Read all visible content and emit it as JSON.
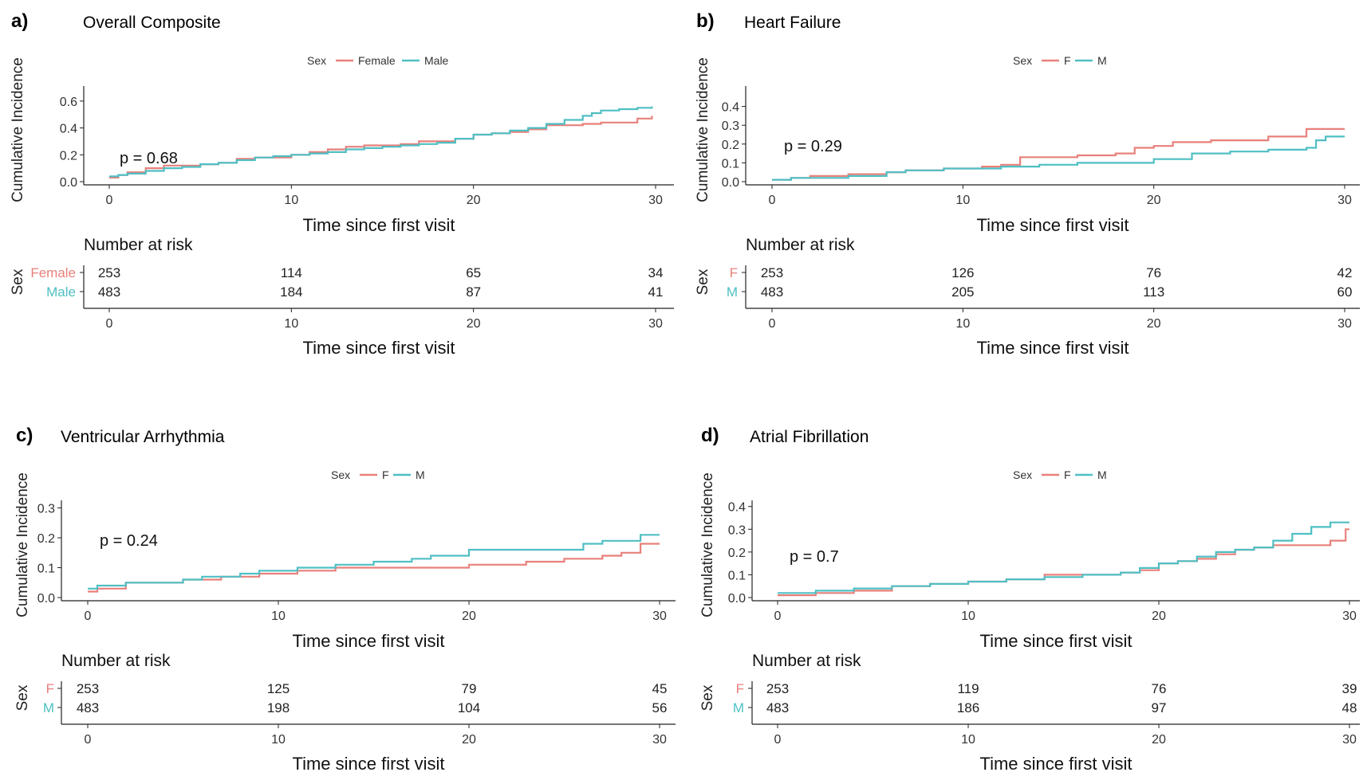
{
  "chart_data": [
    {
      "type": "line",
      "panel_label": "a)",
      "title": "Overall Composite",
      "legend": {
        "title": "Sex",
        "placement": "top-center",
        "labels": [
          "Female",
          "Male"
        ]
      },
      "xlabel": "Time since first visit",
      "ylabel": "Cumulative Incidence",
      "xlim": [
        0,
        30
      ],
      "ylim": [
        0,
        0.7
      ],
      "xticks": [
        0,
        10,
        20,
        30
      ],
      "yticks": [
        0.0,
        0.2,
        0.4,
        0.6
      ],
      "annotation": "p = 0.68",
      "colors": {
        "female": "#e8807b",
        "male": "#4fbfc3"
      },
      "series": [
        {
          "name": "Female",
          "x": [
            0,
            0.5,
            1,
            2,
            3,
            4,
            5,
            6,
            7,
            8,
            9,
            10,
            11,
            12,
            13,
            14,
            15,
            16,
            17,
            18,
            19,
            20,
            21,
            22,
            23,
            24,
            25,
            26,
            27,
            28,
            29,
            29.8
          ],
          "y": [
            0.03,
            0.05,
            0.07,
            0.1,
            0.12,
            0.12,
            0.13,
            0.14,
            0.17,
            0.18,
            0.18,
            0.2,
            0.22,
            0.24,
            0.26,
            0.27,
            0.27,
            0.28,
            0.3,
            0.3,
            0.32,
            0.35,
            0.36,
            0.37,
            0.39,
            0.42,
            0.42,
            0.43,
            0.44,
            0.44,
            0.47,
            0.49
          ]
        },
        {
          "name": "Male",
          "x": [
            0,
            0.5,
            1,
            2,
            3,
            4,
            5,
            6,
            7,
            8,
            9,
            10,
            11,
            12,
            13,
            14,
            15,
            16,
            17,
            18,
            19,
            20,
            21,
            22,
            23,
            24,
            25,
            26,
            26.5,
            27,
            28,
            29,
            29.8
          ],
          "y": [
            0.04,
            0.05,
            0.06,
            0.08,
            0.1,
            0.11,
            0.13,
            0.14,
            0.16,
            0.18,
            0.19,
            0.2,
            0.21,
            0.22,
            0.24,
            0.25,
            0.26,
            0.27,
            0.28,
            0.29,
            0.32,
            0.35,
            0.36,
            0.38,
            0.4,
            0.43,
            0.46,
            0.49,
            0.51,
            0.53,
            0.54,
            0.55,
            0.56
          ]
        }
      ],
      "risk_table": {
        "title": "Number at risk",
        "row_header": "Sex",
        "time_points": [
          0,
          10,
          20,
          30
        ],
        "xlabel": "Time since first visit",
        "rows": [
          {
            "label": "Female",
            "values": [
              "253",
              "114",
              "65",
              "34"
            ]
          },
          {
            "label": "Male",
            "values": [
              "483",
              "184",
              "87",
              "41"
            ]
          }
        ]
      }
    },
    {
      "type": "line",
      "panel_label": "b)",
      "title": "Heart Failure",
      "legend": {
        "title": "Sex",
        "placement": "top-center",
        "labels": [
          "F",
          "M"
        ]
      },
      "xlabel": "Time since first visit",
      "ylabel": "Cumulative Incidence",
      "xlim": [
        0,
        30
      ],
      "ylim": [
        0,
        0.5
      ],
      "xticks": [
        0,
        10,
        20,
        30
      ],
      "yticks": [
        0.0,
        0.1,
        0.2,
        0.3,
        0.4
      ],
      "annotation": "p = 0.29",
      "colors": {
        "female": "#e8807b",
        "male": "#4fbfc3"
      },
      "series": [
        {
          "name": "F",
          "x": [
            0,
            1,
            2,
            4,
            6,
            7,
            9,
            10,
            11,
            12,
            13,
            14,
            16,
            18,
            19,
            20,
            21,
            23,
            25,
            26,
            27,
            28,
            29,
            30
          ],
          "y": [
            0.01,
            0.02,
            0.03,
            0.04,
            0.05,
            0.06,
            0.07,
            0.07,
            0.08,
            0.09,
            0.13,
            0.13,
            0.14,
            0.15,
            0.18,
            0.19,
            0.21,
            0.22,
            0.22,
            0.24,
            0.24,
            0.28,
            0.28,
            0.28
          ]
        },
        {
          "name": "M",
          "x": [
            0,
            1,
            2,
            4,
            6,
            7,
            9,
            10,
            12,
            14,
            16,
            18,
            20,
            21,
            22,
            24,
            26,
            27,
            28,
            28.5,
            29,
            30
          ],
          "y": [
            0.01,
            0.02,
            0.02,
            0.03,
            0.05,
            0.06,
            0.07,
            0.07,
            0.08,
            0.09,
            0.1,
            0.1,
            0.12,
            0.12,
            0.15,
            0.16,
            0.17,
            0.17,
            0.18,
            0.22,
            0.24,
            0.24
          ]
        }
      ],
      "risk_table": {
        "title": "Number at risk",
        "row_header": "Sex",
        "time_points": [
          0,
          10,
          20,
          30
        ],
        "xlabel": "Time since first visit",
        "rows": [
          {
            "label": "F",
            "values": [
              "253",
              "126",
              "76",
              "42"
            ]
          },
          {
            "label": "M",
            "values": [
              "483",
              "205",
              "113",
              "60"
            ]
          }
        ]
      }
    },
    {
      "type": "line",
      "panel_label": "c)",
      "title": "Ventricular Arrhythmia",
      "legend": {
        "title": "Sex",
        "placement": "top-center",
        "labels": [
          "F",
          "M"
        ]
      },
      "xlabel": "Time since first visit",
      "ylabel": "Cumulative Incidence",
      "xlim": [
        0,
        30
      ],
      "ylim": [
        0,
        0.32
      ],
      "xticks": [
        0,
        10,
        20,
        30
      ],
      "yticks": [
        0.0,
        0.1,
        0.2,
        0.3
      ],
      "annotation": "p = 0.24",
      "colors": {
        "female": "#e8807b",
        "male": "#4fbfc3"
      },
      "series": [
        {
          "name": "F",
          "x": [
            0,
            0.5,
            2,
            5,
            7,
            9,
            11,
            13,
            15,
            17,
            19,
            20,
            21,
            23,
            25,
            27,
            28,
            29,
            30
          ],
          "y": [
            0.02,
            0.03,
            0.05,
            0.06,
            0.07,
            0.08,
            0.09,
            0.1,
            0.1,
            0.1,
            0.1,
            0.11,
            0.11,
            0.12,
            0.13,
            0.14,
            0.15,
            0.18,
            0.18
          ]
        },
        {
          "name": "M",
          "x": [
            0,
            0.5,
            2,
            5,
            6,
            8,
            9,
            11,
            13,
            15,
            17,
            18,
            20,
            22,
            24,
            26,
            27,
            28,
            29,
            30
          ],
          "y": [
            0.03,
            0.04,
            0.05,
            0.06,
            0.07,
            0.08,
            0.09,
            0.1,
            0.11,
            0.12,
            0.13,
            0.14,
            0.16,
            0.16,
            0.16,
            0.18,
            0.19,
            0.19,
            0.21,
            0.21
          ]
        }
      ],
      "risk_table": {
        "title": "Number at risk",
        "row_header": "Sex",
        "time_points": [
          0,
          10,
          20,
          30
        ],
        "xlabel": "Time since first visit",
        "rows": [
          {
            "label": "F",
            "values": [
              "253",
              "125",
              "79",
              "45"
            ]
          },
          {
            "label": "M",
            "values": [
              "483",
              "198",
              "104",
              "56"
            ]
          }
        ]
      }
    },
    {
      "type": "line",
      "panel_label": "d)",
      "title": "Atrial Fibrillation",
      "legend": {
        "title": "Sex",
        "placement": "top-center",
        "labels": [
          "F",
          "M"
        ]
      },
      "xlabel": "Time since first visit",
      "ylabel": "Cumulative Incidence",
      "xlim": [
        0,
        30
      ],
      "ylim": [
        0,
        0.42
      ],
      "xticks": [
        0,
        10,
        20,
        30
      ],
      "yticks": [
        0.0,
        0.1,
        0.2,
        0.3,
        0.4
      ],
      "annotation": "p = 0.7",
      "colors": {
        "female": "#e8807b",
        "male": "#4fbfc3"
      },
      "series": [
        {
          "name": "F",
          "x": [
            0,
            2,
            4,
            6,
            8,
            10,
            12,
            14,
            16,
            18,
            19,
            20,
            21,
            22,
            23,
            24,
            25,
            26,
            27,
            28,
            29,
            29.8,
            30
          ],
          "y": [
            0.01,
            0.02,
            0.03,
            0.05,
            0.06,
            0.07,
            0.08,
            0.1,
            0.1,
            0.11,
            0.12,
            0.15,
            0.16,
            0.17,
            0.19,
            0.21,
            0.22,
            0.23,
            0.23,
            0.23,
            0.25,
            0.3,
            0.3
          ]
        },
        {
          "name": "M",
          "x": [
            0,
            2,
            4,
            6,
            8,
            10,
            12,
            14,
            16,
            18,
            19,
            20,
            21,
            22,
            23,
            24,
            25,
            26,
            27,
            28,
            29,
            29.5,
            30
          ],
          "y": [
            0.02,
            0.03,
            0.04,
            0.05,
            0.06,
            0.07,
            0.08,
            0.09,
            0.1,
            0.11,
            0.13,
            0.15,
            0.16,
            0.18,
            0.2,
            0.21,
            0.22,
            0.25,
            0.28,
            0.31,
            0.33,
            0.33,
            0.33
          ]
        }
      ],
      "risk_table": {
        "title": "Number at risk",
        "row_header": "Sex",
        "time_points": [
          0,
          10,
          20,
          30
        ],
        "xlabel": "Time since first visit",
        "rows": [
          {
            "label": "F",
            "values": [
              "253",
              "119",
              "76",
              "39"
            ]
          },
          {
            "label": "M",
            "values": [
              "483",
              "186",
              "97",
              "48"
            ]
          }
        ]
      }
    }
  ]
}
